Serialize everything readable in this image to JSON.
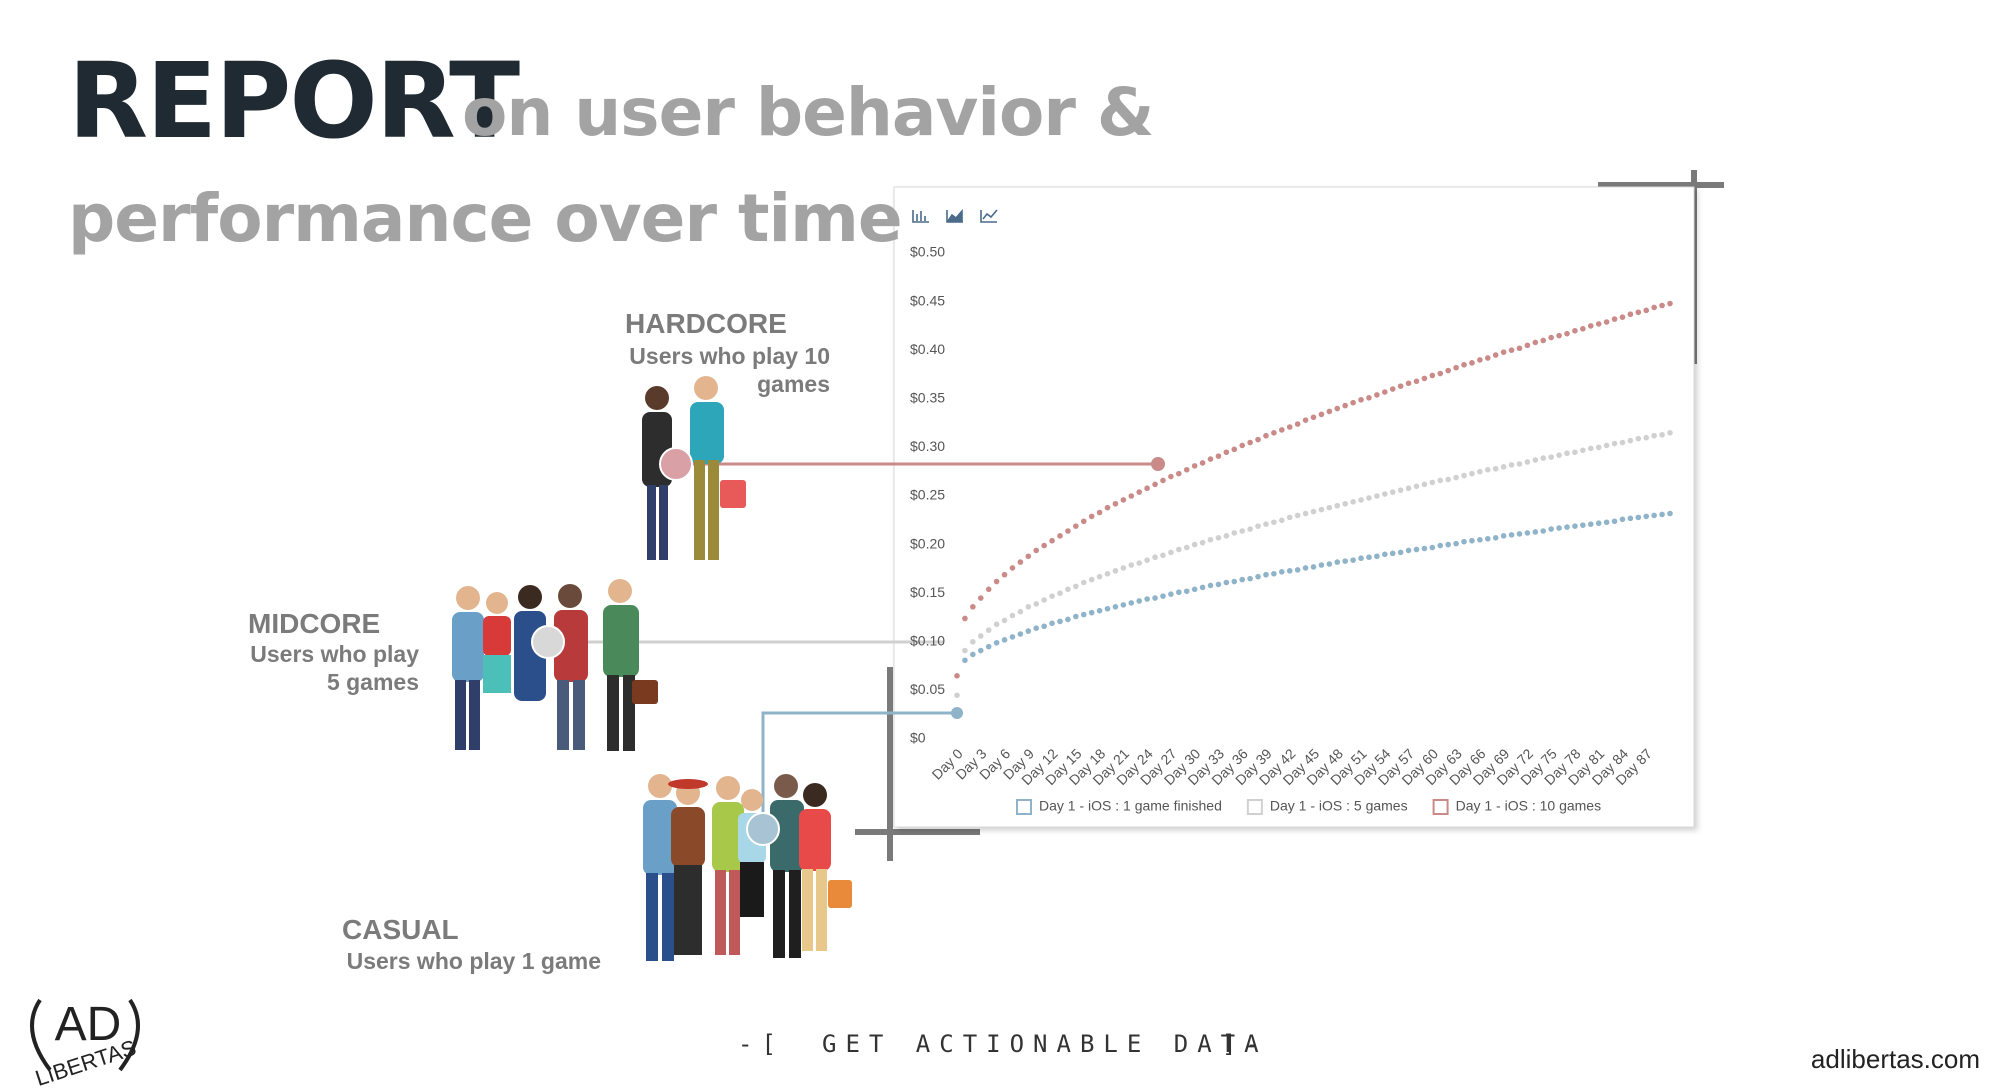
{
  "header": {
    "title_bold": "REPORT",
    "title_rest": "on user behavior &",
    "title_line2": "performance over time"
  },
  "segments": [
    {
      "name": "HARDCORE",
      "description": "Users who play 10 games"
    },
    {
      "name": "MIDCORE",
      "description": "Users who play 5 games"
    },
    {
      "name": "CASUAL",
      "description": "Users who play 1 game"
    }
  ],
  "chart_data": {
    "type": "scatter",
    "categories": [
      "Day 0",
      null,
      null,
      "Day 3",
      null,
      null,
      "Day 6",
      null,
      null,
      "Day 9",
      null,
      null,
      "Day 12",
      null,
      null,
      "Day 15",
      null,
      null,
      "Day 18",
      null,
      null,
      "Day 21",
      null,
      null,
      "Day 24",
      null,
      null,
      "Day 27",
      null,
      null,
      "Day 30",
      null,
      null,
      "Day 33",
      null,
      null,
      "Day 36",
      null,
      null,
      "Day 39",
      null,
      null,
      "Day 42",
      null,
      null,
      "Day 45",
      null,
      null,
      "Day 48",
      null,
      null,
      "Day 51",
      null,
      null,
      "Day 54",
      null,
      null,
      "Day 57",
      null,
      null,
      "Day 60",
      null,
      null,
      "Day 63",
      null,
      null,
      "Day 66",
      null,
      null,
      "Day 69",
      null,
      null,
      "Day 72",
      null,
      null,
      "Day 75",
      null,
      null,
      "Day 78",
      null,
      null,
      "Day 81",
      null,
      null,
      "Day 84",
      null,
      null,
      "Day 87",
      null,
      null,
      null
    ],
    "series": [
      {
        "name": "Day 1 - iOS : 1 game finished",
        "color": "#8fb3c9",
        "values": [
          0.025,
          0.081,
          0.087,
          0.091,
          0.095,
          0.099,
          0.102,
          0.105,
          0.108,
          0.111,
          0.114,
          0.116,
          0.119,
          0.121,
          0.123,
          0.126,
          0.128,
          0.13,
          0.132,
          0.134,
          0.136,
          0.138,
          0.14,
          0.142,
          0.144,
          0.145,
          0.147,
          0.149,
          0.151,
          0.152,
          0.154,
          0.156,
          0.158,
          0.159,
          0.161,
          0.162,
          0.164,
          0.165,
          0.167,
          0.169,
          0.17,
          0.172,
          0.173,
          0.174,
          0.176,
          0.177,
          0.179,
          0.18,
          0.182,
          0.183,
          0.184,
          0.186,
          0.187,
          0.188,
          0.19,
          0.191,
          0.192,
          0.194,
          0.195,
          0.196,
          0.197,
          0.199,
          0.2,
          0.201,
          0.203,
          0.204,
          0.205,
          0.206,
          0.207,
          0.209,
          0.21,
          0.211,
          0.212,
          0.213,
          0.214,
          0.216,
          0.217,
          0.218,
          0.219,
          0.22,
          0.221,
          0.222,
          0.223,
          0.224,
          0.226,
          0.227,
          0.228,
          0.229,
          0.23,
          0.231,
          0.232
        ]
      },
      {
        "name": "Day 1 - iOS : 5 games",
        "color": "#d0d0d0",
        "values": [
          0.045,
          0.091,
          0.1,
          0.106,
          0.112,
          0.118,
          0.122,
          0.127,
          0.131,
          0.136,
          0.139,
          0.143,
          0.147,
          0.15,
          0.154,
          0.157,
          0.161,
          0.164,
          0.167,
          0.17,
          0.173,
          0.176,
          0.179,
          0.181,
          0.184,
          0.187,
          0.189,
          0.192,
          0.195,
          0.197,
          0.2,
          0.202,
          0.205,
          0.207,
          0.209,
          0.212,
          0.214,
          0.216,
          0.219,
          0.221,
          0.223,
          0.225,
          0.228,
          0.23,
          0.232,
          0.234,
          0.236,
          0.238,
          0.24,
          0.242,
          0.244,
          0.246,
          0.248,
          0.25,
          0.252,
          0.254,
          0.256,
          0.258,
          0.26,
          0.262,
          0.264,
          0.266,
          0.267,
          0.269,
          0.271,
          0.273,
          0.275,
          0.277,
          0.278,
          0.28,
          0.282,
          0.283,
          0.285,
          0.287,
          0.289,
          0.29,
          0.292,
          0.294,
          0.295,
          0.297,
          0.299,
          0.3,
          0.302,
          0.304,
          0.305,
          0.307,
          0.309,
          0.31,
          0.312,
          0.313,
          0.315
        ]
      },
      {
        "name": "Day 1 - iOS : 10 games",
        "color": "#c98a88",
        "values": [
          0.065,
          0.124,
          0.136,
          0.145,
          0.154,
          0.162,
          0.169,
          0.176,
          0.182,
          0.188,
          0.194,
          0.199,
          0.204,
          0.209,
          0.214,
          0.219,
          0.224,
          0.229,
          0.233,
          0.238,
          0.242,
          0.246,
          0.25,
          0.254,
          0.258,
          0.262,
          0.266,
          0.27,
          0.273,
          0.277,
          0.281,
          0.284,
          0.288,
          0.291,
          0.295,
          0.298,
          0.302,
          0.305,
          0.308,
          0.312,
          0.315,
          0.318,
          0.321,
          0.324,
          0.328,
          0.331,
          0.334,
          0.337,
          0.34,
          0.343,
          0.346,
          0.349,
          0.351,
          0.354,
          0.357,
          0.36,
          0.363,
          0.366,
          0.368,
          0.371,
          0.374,
          0.376,
          0.379,
          0.382,
          0.385,
          0.387,
          0.39,
          0.392,
          0.395,
          0.398,
          0.4,
          0.402,
          0.405,
          0.408,
          0.41,
          0.413,
          0.415,
          0.417,
          0.42,
          0.422,
          0.425,
          0.427,
          0.429,
          0.432,
          0.434,
          0.437,
          0.439,
          0.441,
          0.444,
          0.446,
          0.448
        ]
      }
    ],
    "ylim": [
      0,
      0.5
    ],
    "yticks": [
      {
        "value": 0,
        "label": "$0"
      },
      {
        "value": 0.05,
        "label": "$0.05"
      },
      {
        "value": 0.1,
        "label": "$0.10"
      },
      {
        "value": 0.15,
        "label": "$0.15"
      },
      {
        "value": 0.2,
        "label": "$0.20"
      },
      {
        "value": 0.25,
        "label": "$0.25"
      },
      {
        "value": 0.3,
        "label": "$0.30"
      },
      {
        "value": 0.35,
        "label": "$0.35"
      },
      {
        "value": 0.4,
        "label": "$0.40"
      },
      {
        "value": 0.45,
        "label": "$0.45"
      },
      {
        "value": 0.5,
        "label": "$0.50"
      }
    ],
    "grid": false,
    "legend": "bottom"
  },
  "footer": {
    "tagline_left": "-[",
    "tagline": "GET ACTIONABLE DATA",
    "tagline_right": "]-",
    "website": "adlibertas.com",
    "logo_initials": "AD",
    "logo_name": "LIBERTAS"
  }
}
